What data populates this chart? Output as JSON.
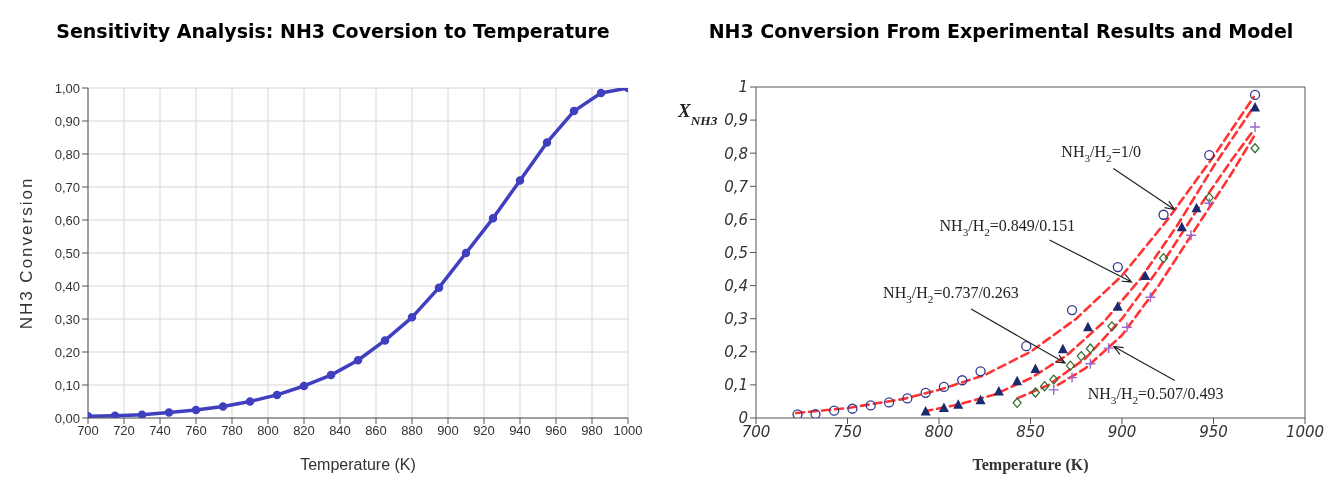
{
  "chart_data": [
    {
      "type": "line",
      "title": "Sensitivity Analysis: NH3 Coversion to Temperature",
      "xlabel": "Temperature (K)",
      "ylabel": "NH3 Conversion",
      "series": [
        {
          "color": "#3f3fbf",
          "x": [
            700,
            715,
            730,
            745,
            760,
            775,
            790,
            805,
            820,
            835,
            850,
            865,
            880,
            895,
            910,
            925,
            940,
            955,
            970,
            985,
            1000
          ],
          "values": [
            0.005,
            0.007,
            0.01,
            0.017,
            0.024,
            0.035,
            0.05,
            0.07,
            0.097,
            0.13,
            0.175,
            0.235,
            0.305,
            0.395,
            0.5,
            0.605,
            0.72,
            0.835,
            0.93,
            0.985,
            1.0
          ]
        }
      ],
      "marker": "circle",
      "line_style": "solid",
      "grid": true,
      "xlim": [
        700,
        1000
      ],
      "xticks": [
        700,
        720,
        740,
        760,
        780,
        800,
        820,
        840,
        860,
        880,
        900,
        920,
        940,
        960,
        980,
        1000
      ],
      "ylim": [
        0,
        1
      ],
      "yticks": [
        {
          "value": 0,
          "label": "0,00"
        },
        {
          "value": 0.1,
          "label": "0,10"
        },
        {
          "value": 0.2,
          "label": "0,20"
        },
        {
          "value": 0.3,
          "label": "0,30"
        },
        {
          "value": 0.4,
          "label": "0,40"
        },
        {
          "value": 0.5,
          "label": "0,50"
        },
        {
          "value": 0.6,
          "label": "0,60"
        },
        {
          "value": 0.7,
          "label": "0,70"
        },
        {
          "value": 0.8,
          "label": "0,80"
        },
        {
          "value": 0.9,
          "label": "0,90"
        },
        {
          "value": 1,
          "label": "1,00"
        }
      ]
    },
    {
      "type": "scatter",
      "title": "NH3 Conversion From Experimental Results and Model",
      "xlabel": "Temperature (K)",
      "ylabel": "X$_{NH3}$",
      "series": [
        {
          "marker": "circle",
          "color": "#2e3a8c",
          "x": [
            722.7,
            732.5,
            742.7,
            752.7,
            762.7,
            772.7,
            782.7,
            792.7,
            802.7,
            812.7,
            822.7,
            847.7,
            872.7,
            897.7,
            922.7,
            947.7,
            972.7
          ],
          "values": [
            0.011,
            0.012,
            0.022,
            0.028,
            0.038,
            0.047,
            0.059,
            0.076,
            0.094,
            0.114,
            0.141,
            0.217,
            0.326,
            0.456,
            0.614,
            0.794,
            0.976
          ]
        },
        {
          "marker": "triangle",
          "color": "#1a2a6c",
          "x": [
            792.7,
            802.7,
            810.5,
            822.7,
            832.7,
            842.7,
            852.7,
            867.7,
            881.4,
            897.7,
            912.7,
            932.7,
            940.7,
            972.7
          ],
          "values": [
            0.02,
            0.03,
            0.04,
            0.054,
            0.08,
            0.111,
            0.148,
            0.208,
            0.274,
            0.336,
            0.429,
            0.576,
            0.634,
            0.938
          ]
        },
        {
          "marker": "diamond",
          "color": "#2e6b2e",
          "x": [
            842.7,
            852.7,
            857.7,
            862.7,
            871.8,
            877.7,
            882.7,
            894.5,
            922.7,
            947.7,
            972.7
          ],
          "values": [
            0.046,
            0.077,
            0.096,
            0.116,
            0.158,
            0.187,
            0.21,
            0.277,
            0.483,
            0.666,
            0.815
          ]
        },
        {
          "marker": "cross",
          "color": "#9966cc",
          "x": [
            862.7,
            872.7,
            882.7,
            892.7,
            902.7,
            915.5,
            937.7,
            947.7,
            972.7
          ],
          "values": [
            0.085,
            0.122,
            0.164,
            0.211,
            0.274,
            0.365,
            0.552,
            0.649,
            0.879
          ]
        },
        {
          "type": "line",
          "line_style": "dashed",
          "marker": "none",
          "color": "#ff3333",
          "x": [
            722,
            750,
            780,
            800,
            825,
            850,
            875,
            900,
            925,
            950,
            972
          ],
          "values": [
            0.015,
            0.03,
            0.057,
            0.085,
            0.13,
            0.2,
            0.3,
            0.43,
            0.6,
            0.79,
            0.97
          ]
        },
        {
          "type": "line",
          "line_style": "dashed",
          "marker": "none",
          "color": "#ff3333",
          "x": [
            792,
            810,
            830,
            850,
            870,
            890,
            910,
            930,
            950,
            972
          ],
          "values": [
            0.02,
            0.04,
            0.07,
            0.12,
            0.19,
            0.29,
            0.42,
            0.58,
            0.76,
            0.94
          ]
        },
        {
          "type": "line",
          "line_style": "dashed",
          "marker": "none",
          "color": "#ff3333",
          "x": [
            843,
            860,
            880,
            900,
            920,
            940,
            960,
            972
          ],
          "values": [
            0.06,
            0.1,
            0.18,
            0.3,
            0.45,
            0.62,
            0.78,
            0.87
          ]
        },
        {
          "type": "line",
          "line_style": "dashed",
          "marker": "none",
          "color": "#ff3333",
          "x": [
            865,
            880,
            900,
            920,
            940,
            960,
            972
          ],
          "values": [
            0.1,
            0.15,
            0.25,
            0.4,
            0.57,
            0.74,
            0.85
          ]
        }
      ],
      "annotations": [
        {
          "text": "NH$_{3}$/H$_{2}$=1/0",
          "x": 928.6,
          "y": 0.63
        },
        {
          "text": "NH$_{3}$/H$_{2}$=0.849/0.151",
          "x": 905.2,
          "y": 0.411
        },
        {
          "text": "NH$_{3}$/H$_{2}$=0.737/0.263",
          "x": 868.9,
          "y": 0.166
        },
        {
          "text": "NH$_{3}$/H$_{2}$=0.507/0.493",
          "x": 895.5,
          "y": 0.216
        }
      ],
      "grid": false,
      "xlim": [
        700,
        1000
      ],
      "xticks": [
        700,
        750,
        800,
        850,
        900,
        950,
        1000
      ],
      "ylim": [
        0,
        1
      ],
      "yticks": [
        0,
        {
          "value": 0.1,
          "label": "0,1"
        },
        {
          "value": 0.2,
          "label": "0,2"
        },
        {
          "value": 0.3,
          "label": "0,3"
        },
        {
          "value": 0.4,
          "label": "0,4"
        },
        {
          "value": 0.5,
          "label": "0,5"
        },
        {
          "value": 0.6,
          "label": "0,6"
        },
        {
          "value": 0.7,
          "label": "0,7"
        },
        {
          "value": 0.8,
          "label": "0,8"
        },
        {
          "value": 0.9,
          "label": "0,9"
        },
        1
      ]
    }
  ]
}
